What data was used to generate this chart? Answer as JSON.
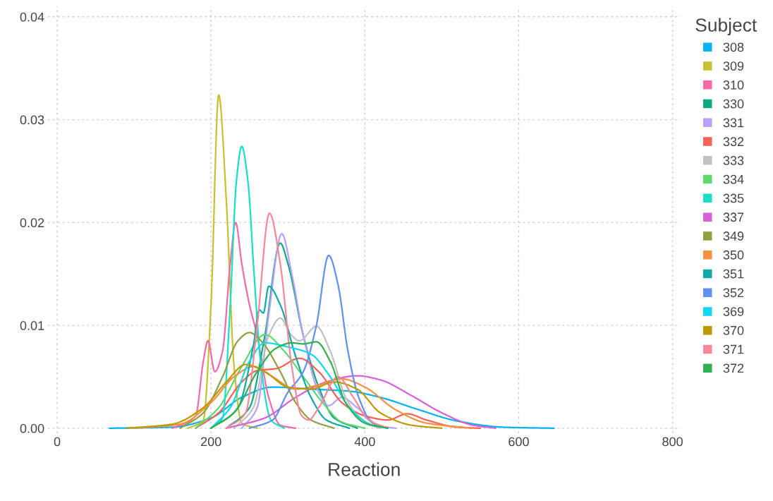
{
  "chart_data": {
    "type": "line",
    "xlabel": "Reaction",
    "legend_title": "Subject",
    "legend": "right",
    "grid": true,
    "xlim": [
      -12,
      810
    ],
    "ylim": [
      -0.0005,
      0.041
    ],
    "xticks": [
      0,
      200,
      400,
      600,
      800
    ],
    "yticks": [
      {
        "value": 0,
        "label": "0.00"
      },
      {
        "value": 0.01,
        "label": "0.01"
      },
      {
        "value": 0.02,
        "label": "0.02"
      },
      {
        "value": 0.03,
        "label": "0.03"
      },
      {
        "value": 0.04,
        "label": "0.04"
      }
    ],
    "series": [
      {
        "name": "308",
        "color": "#00b4f0",
        "x": [
          68,
          150,
          200,
          240,
          280,
          330,
          380,
          420,
          470,
          520,
          580,
          646
        ],
        "values": [
          0,
          0.0001,
          0.001,
          0.003,
          0.004,
          0.0038,
          0.0036,
          0.003,
          0.0018,
          0.0007,
          0.0001,
          0
        ]
      },
      {
        "name": "309",
        "color": "#c8c030",
        "x": [
          170,
          190,
          200,
          210,
          220,
          230,
          240,
          260
        ],
        "values": [
          0,
          0.0008,
          0.012,
          0.0324,
          0.022,
          0.006,
          0.0005,
          0
        ]
      },
      {
        "name": "310",
        "color": "#f868a8",
        "x": [
          150,
          180,
          190,
          196,
          205,
          215,
          225,
          232,
          240,
          250,
          260,
          275,
          290,
          310
        ],
        "values": [
          0,
          0.0012,
          0.0065,
          0.0085,
          0.0055,
          0.0075,
          0.016,
          0.02,
          0.016,
          0.012,
          0.009,
          0.003,
          0.0003,
          0
        ]
      },
      {
        "name": "330",
        "color": "#10a880",
        "x": [
          220,
          250,
          270,
          290,
          300,
          320,
          340,
          360,
          390
        ],
        "values": [
          0,
          0.002,
          0.009,
          0.018,
          0.016,
          0.009,
          0.004,
          0.001,
          0
        ]
      },
      {
        "name": "331",
        "color": "#b8a0f8",
        "x": [
          240,
          260,
          275,
          292,
          305,
          320,
          340,
          353,
          370,
          390,
          420,
          440
        ],
        "values": [
          0,
          0.002,
          0.011,
          0.0189,
          0.015,
          0.009,
          0.0035,
          0.0022,
          0.003,
          0.002,
          0.0002,
          0
        ]
      },
      {
        "name": "332",
        "color": "#f86058",
        "x": [
          180,
          210,
          240,
          260,
          285,
          315,
          340,
          370,
          400,
          430,
          455,
          480,
          520,
          550
        ],
        "values": [
          0,
          0.0015,
          0.0045,
          0.0056,
          0.0058,
          0.0068,
          0.0055,
          0.0025,
          0.0012,
          0.0008,
          0.0014,
          0.0008,
          0.0001,
          0
        ]
      },
      {
        "name": "333",
        "color": "#c0c0c0",
        "x": [
          230,
          255,
          275,
          290,
          305,
          315,
          337,
          355,
          375,
          400,
          420
        ],
        "values": [
          0,
          0.002,
          0.009,
          0.0107,
          0.009,
          0.0085,
          0.0099,
          0.0075,
          0.003,
          0.0005,
          0
        ]
      },
      {
        "name": "334",
        "color": "#60d870",
        "x": [
          180,
          210,
          240,
          270,
          295,
          320,
          345,
          370,
          400
        ],
        "values": [
          0,
          0.002,
          0.006,
          0.0091,
          0.0075,
          0.005,
          0.0025,
          0.0006,
          0
        ]
      },
      {
        "name": "335",
        "color": "#18e0c8",
        "x": [
          200,
          215,
          225,
          233,
          240,
          248,
          256,
          265,
          278,
          295
        ],
        "values": [
          0,
          0.001,
          0.012,
          0.024,
          0.0274,
          0.024,
          0.015,
          0.006,
          0.0008,
          0
        ]
      },
      {
        "name": "337",
        "color": "#d860d8",
        "x": [
          220,
          270,
          310,
          350,
          390,
          420,
          460,
          500,
          540,
          570
        ],
        "values": [
          0,
          0.001,
          0.003,
          0.0045,
          0.0051,
          0.0047,
          0.0032,
          0.0015,
          0.0003,
          0
        ]
      },
      {
        "name": "349",
        "color": "#90a040",
        "x": [
          160,
          190,
          215,
          235,
          250,
          265,
          290,
          310,
          330,
          360
        ],
        "values": [
          0,
          0.0015,
          0.005,
          0.0085,
          0.0093,
          0.0085,
          0.0055,
          0.0025,
          0.0008,
          0
        ]
      },
      {
        "name": "350",
        "color": "#f89040",
        "x": [
          100,
          160,
          200,
          230,
          255,
          280,
          310,
          340,
          370,
          400,
          440,
          480,
          540
        ],
        "values": [
          0,
          0.0004,
          0.0025,
          0.005,
          0.006,
          0.005,
          0.0038,
          0.0042,
          0.0048,
          0.004,
          0.0018,
          0.0005,
          0
        ]
      },
      {
        "name": "351",
        "color": "#10a8a8",
        "x": [
          200,
          235,
          255,
          263,
          268,
          275,
          290,
          310,
          330,
          350,
          380
        ],
        "values": [
          0,
          0.002,
          0.008,
          0.0115,
          0.0112,
          0.0138,
          0.012,
          0.007,
          0.003,
          0.0008,
          0
        ]
      },
      {
        "name": "352",
        "color": "#6090f0",
        "x": [
          250,
          280,
          300,
          320,
          337,
          353,
          365,
          378,
          392,
          410,
          430
        ],
        "values": [
          0,
          0.0008,
          0.0035,
          0.0055,
          0.01,
          0.0168,
          0.014,
          0.0075,
          0.003,
          0.0005,
          0
        ]
      },
      {
        "name": "369",
        "color": "#10d8f0",
        "x": [
          200,
          225,
          250,
          270,
          300,
          330,
          355,
          380,
          410,
          430
        ],
        "values": [
          0,
          0.002,
          0.0065,
          0.0083,
          0.0079,
          0.0072,
          0.005,
          0.002,
          0.0003,
          0
        ]
      },
      {
        "name": "370",
        "color": "#c09800",
        "x": [
          90,
          150,
          190,
          220,
          245,
          270,
          300,
          330,
          360,
          390,
          420,
          460,
          500
        ],
        "values": [
          0,
          0.0004,
          0.002,
          0.0045,
          0.0062,
          0.0055,
          0.004,
          0.0038,
          0.0045,
          0.0038,
          0.0015,
          0.0003,
          0
        ]
      },
      {
        "name": "371",
        "color": "#f88898",
        "x": [
          220,
          245,
          260,
          276,
          290,
          305,
          318,
          327,
          340,
          365,
          385,
          405,
          430
        ],
        "values": [
          0,
          0.0015,
          0.01,
          0.0209,
          0.016,
          0.006,
          0.0012,
          0.0008,
          0.002,
          0.005,
          0.003,
          0.0008,
          0
        ]
      },
      {
        "name": "372",
        "color": "#30b050",
        "x": [
          200,
          230,
          260,
          285,
          305,
          320,
          337,
          355,
          375,
          400,
          430
        ],
        "values": [
          0,
          0.0015,
          0.0055,
          0.0078,
          0.0083,
          0.0082,
          0.0084,
          0.0065,
          0.0025,
          0.0005,
          0
        ]
      }
    ]
  }
}
